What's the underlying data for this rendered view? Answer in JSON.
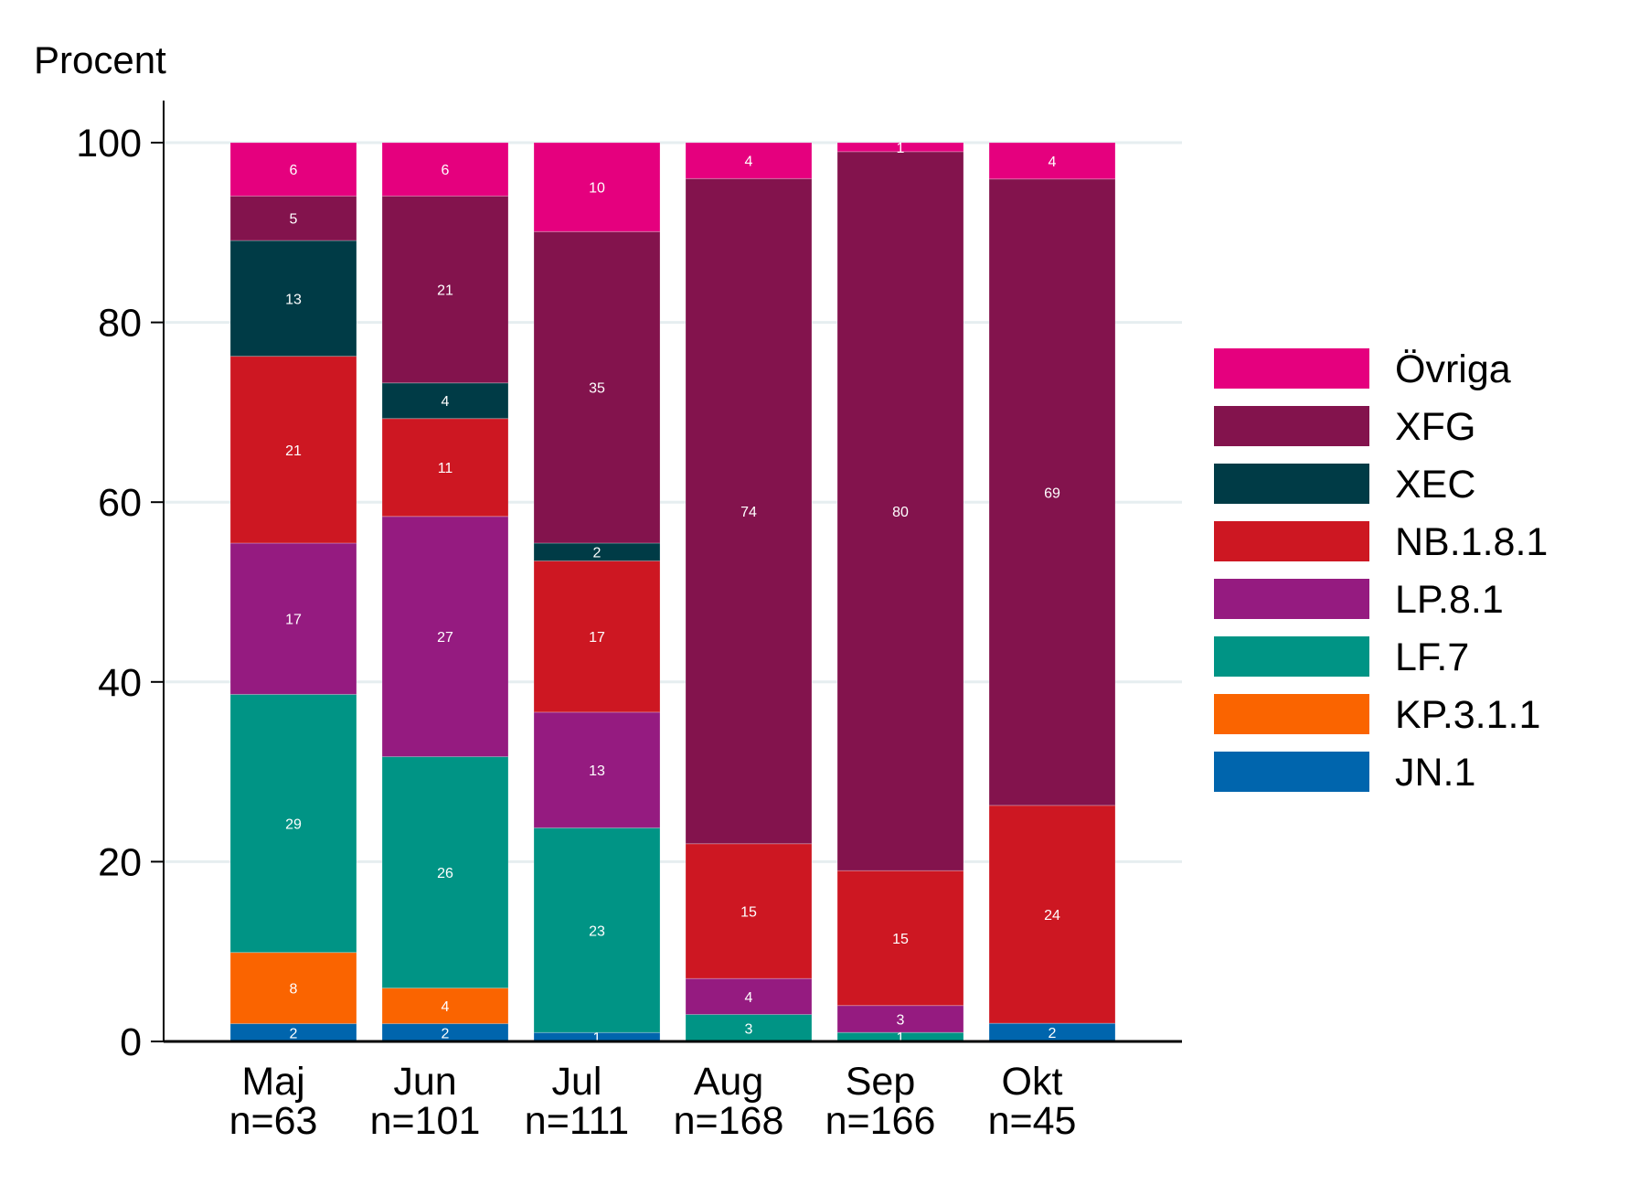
{
  "chart_data": {
    "type": "bar",
    "stacked": true,
    "ylabel": "Procent",
    "ylim": [
      0,
      100
    ],
    "yticks": [
      0,
      20,
      40,
      60,
      80,
      100
    ],
    "grid": true,
    "legend_position": "right",
    "categories": [
      "Maj\nn=63",
      "Jun\nn=101",
      "Jul\nn=111",
      "Aug\nn=168",
      "Sep\nn=166",
      "Okt\nn=45"
    ],
    "category_lines": [
      [
        "Maj",
        "n=63"
      ],
      [
        "Jun",
        "n=101"
      ],
      [
        "Jul",
        "n=111"
      ],
      [
        "Aug",
        "n=168"
      ],
      [
        "Sep",
        "n=166"
      ],
      [
        "Okt",
        "n=45"
      ]
    ],
    "series": [
      {
        "name": "JN.1",
        "color": "#0065ad",
        "values": [
          2,
          2,
          1,
          0,
          0,
          2
        ]
      },
      {
        "name": "KP.3.1.1",
        "color": "#fa6400",
        "values": [
          8,
          4,
          0,
          0,
          0,
          0
        ]
      },
      {
        "name": "LF.7",
        "color": "#009485",
        "values": [
          29,
          26,
          23,
          3,
          1,
          0
        ]
      },
      {
        "name": "LP.8.1",
        "color": "#951b80",
        "values": [
          17,
          27,
          13,
          4,
          3,
          0
        ]
      },
      {
        "name": "NB.1.8.1",
        "color": "#cd1722",
        "values": [
          21,
          11,
          17,
          15,
          15,
          24
        ]
      },
      {
        "name": "XEC",
        "color": "#003b46",
        "values": [
          13,
          4,
          2,
          0,
          0,
          0
        ]
      },
      {
        "name": "XFG",
        "color": "#83134d",
        "values": [
          5,
          21,
          35,
          74,
          80,
          69
        ]
      },
      {
        "name": "Övriga",
        "color": "#e5007e",
        "values": [
          6,
          6,
          10,
          4,
          1,
          4
        ]
      }
    ]
  }
}
